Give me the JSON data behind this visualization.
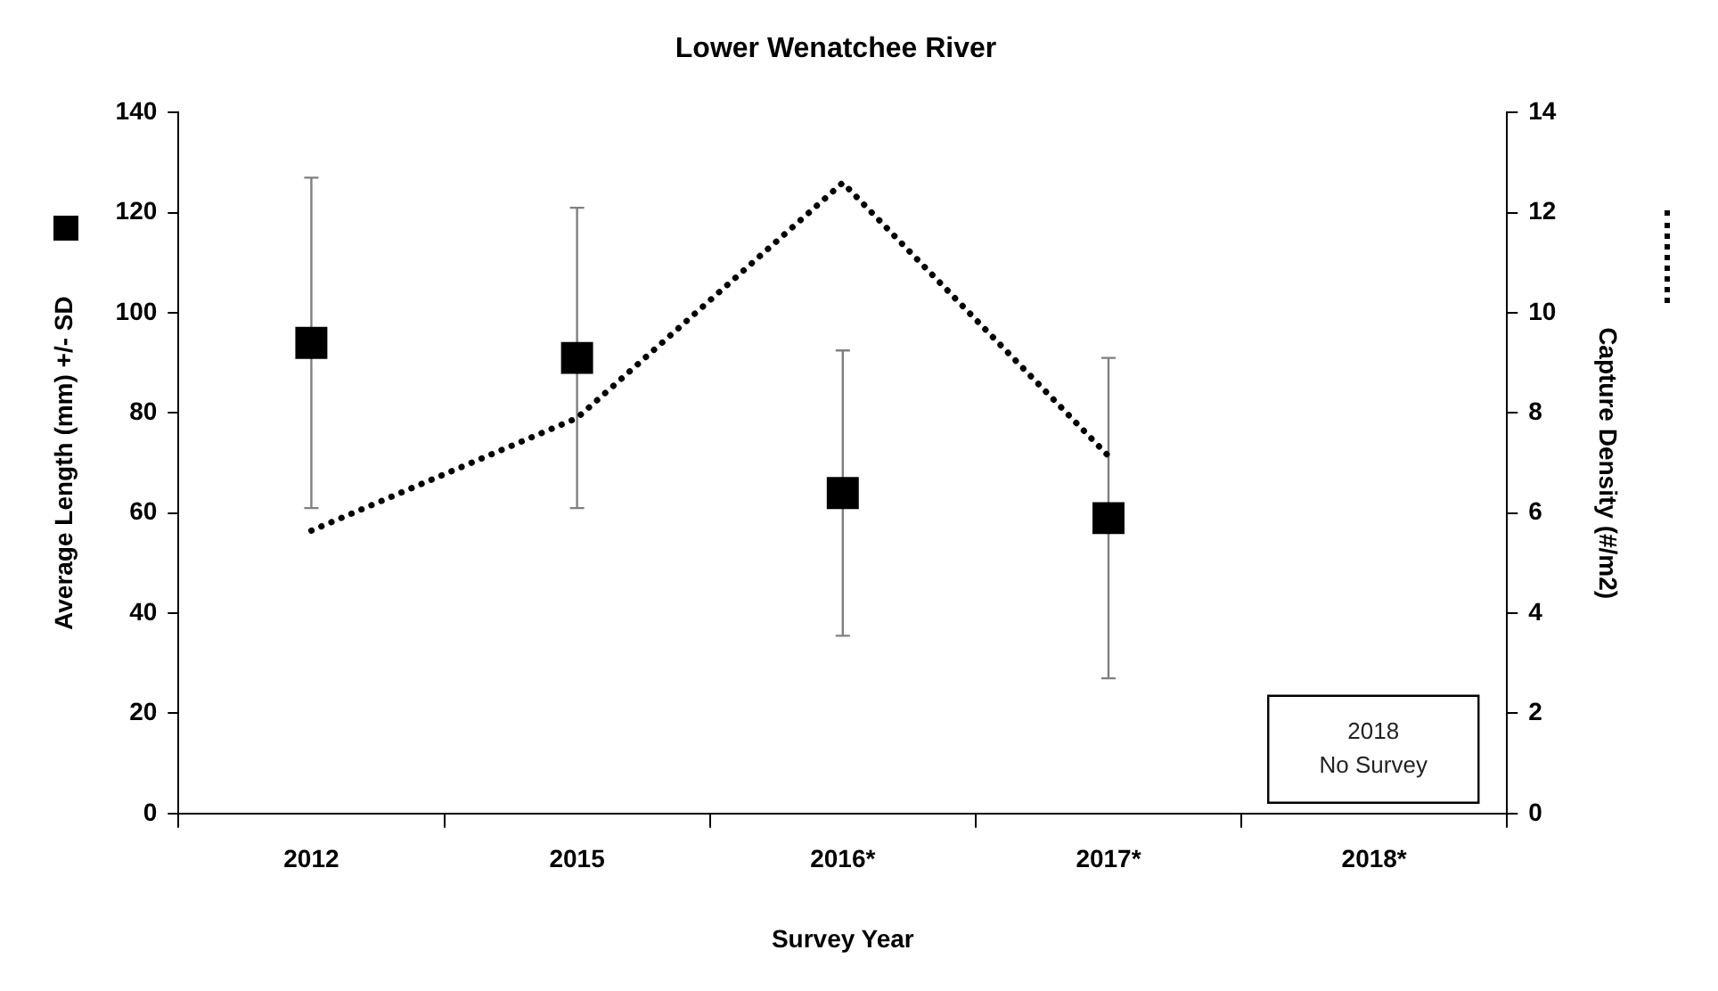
{
  "chart_data": {
    "type": "scatter",
    "title": "Lower Wenatchee River",
    "xlabel": "Survey Year",
    "ylabel": "Average Length (mm) +/- SD",
    "y2label": "Capture Density (#/m2)",
    "categories": [
      "2012",
      "2015",
      "2016*",
      "2017*",
      "2018*"
    ],
    "series": [
      {
        "color": "#000000",
        "marker": "square",
        "values": [
          94,
          91,
          64,
          59,
          null
        ],
        "errors": [
          33,
          30,
          28.5,
          32,
          null
        ]
      },
      {
        "type": "line",
        "color": "#000000",
        "marker": "none",
        "line_style": "dotted",
        "axis": "y2",
        "values": [
          5.65,
          7.9,
          12.6,
          7.14,
          null
        ]
      }
    ],
    "ylim": [
      0,
      140
    ],
    "yticks": [
      0,
      20,
      40,
      60,
      80,
      100,
      120,
      140
    ],
    "y2lim": [
      0,
      14
    ],
    "y2ticks": [
      0,
      2,
      4,
      6,
      8,
      10,
      12,
      14
    ],
    "annotations": [
      "2018\nNo Survey"
    ],
    "grid": false,
    "legend": false
  }
}
